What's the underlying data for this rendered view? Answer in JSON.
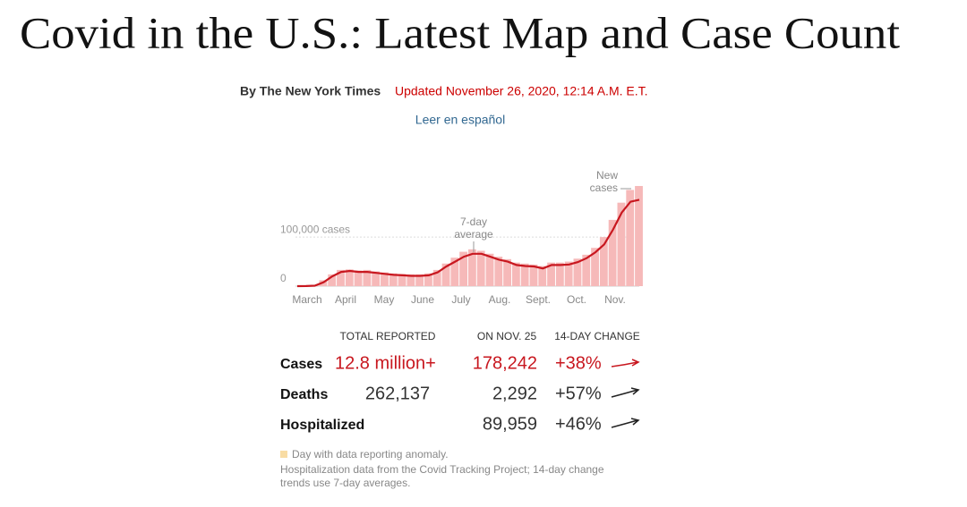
{
  "header": {
    "title": "Covid in the U.S.: Latest Map and Case Count",
    "byline": "By The New York Times",
    "updated": "Updated November 26, 2020, 12:14 A.M. E.T.",
    "spanish_link": "Leer en español"
  },
  "chart": {
    "type": "bar-line",
    "x_labels": [
      "March",
      "April",
      "May",
      "June",
      "July",
      "Aug.",
      "Sept.",
      "Oct.",
      "Nov."
    ],
    "ylim": [
      0,
      235000
    ],
    "yticks": [
      0,
      {
        "value": 100000,
        "label": "100,000 cases"
      }
    ],
    "new_cases_label": [
      "New",
      "cases"
    ],
    "average_label": [
      "7-day",
      "average"
    ],
    "series": [
      {
        "color": "#f6b9b9",
        "values": [
          0,
          300,
          2000,
          12000,
          24000,
          33000,
          34000,
          32000,
          33000,
          30000,
          28000,
          26000,
          25000,
          24000,
          24000,
          26000,
          33000,
          46000,
          58000,
          70000,
          75000,
          72000,
          66000,
          60000,
          55000,
          48000,
          46000,
          44000,
          41000,
          48000,
          48000,
          50000,
          56000,
          64000,
          78000,
          100000,
          135000,
          170000,
          196000,
          204000
        ]
      },
      {
        "color": "#c8171f",
        "values": [
          0,
          100,
          1000,
          8000,
          20000,
          29000,
          31000,
          29000,
          29000,
          27000,
          25000,
          23000,
          22000,
          21000,
          21000,
          22000,
          28000,
          40000,
          50000,
          60000,
          66000,
          66000,
          60000,
          54000,
          50000,
          43000,
          41000,
          40000,
          36000,
          43000,
          43000,
          44000,
          49000,
          57000,
          69000,
          85000,
          115000,
          150000,
          172000,
          176000
        ]
      }
    ]
  },
  "table": {
    "headers": [
      "TOTAL REPORTED",
      "ON NOV. 25",
      "14-DAY CHANGE"
    ],
    "rows": [
      [
        "Cases",
        "12.8 million+",
        "178,242",
        "+38%"
      ],
      [
        "Deaths",
        "262,137",
        "2,292",
        "+57%"
      ],
      [
        "Hospitalized",
        null,
        "89,959",
        "+46%"
      ]
    ]
  },
  "notes": [
    "Day with data reporting anomaly.",
    "Hospitalization data from the Covid Tracking Project; 14-day change",
    "trends use 7-day averages."
  ]
}
